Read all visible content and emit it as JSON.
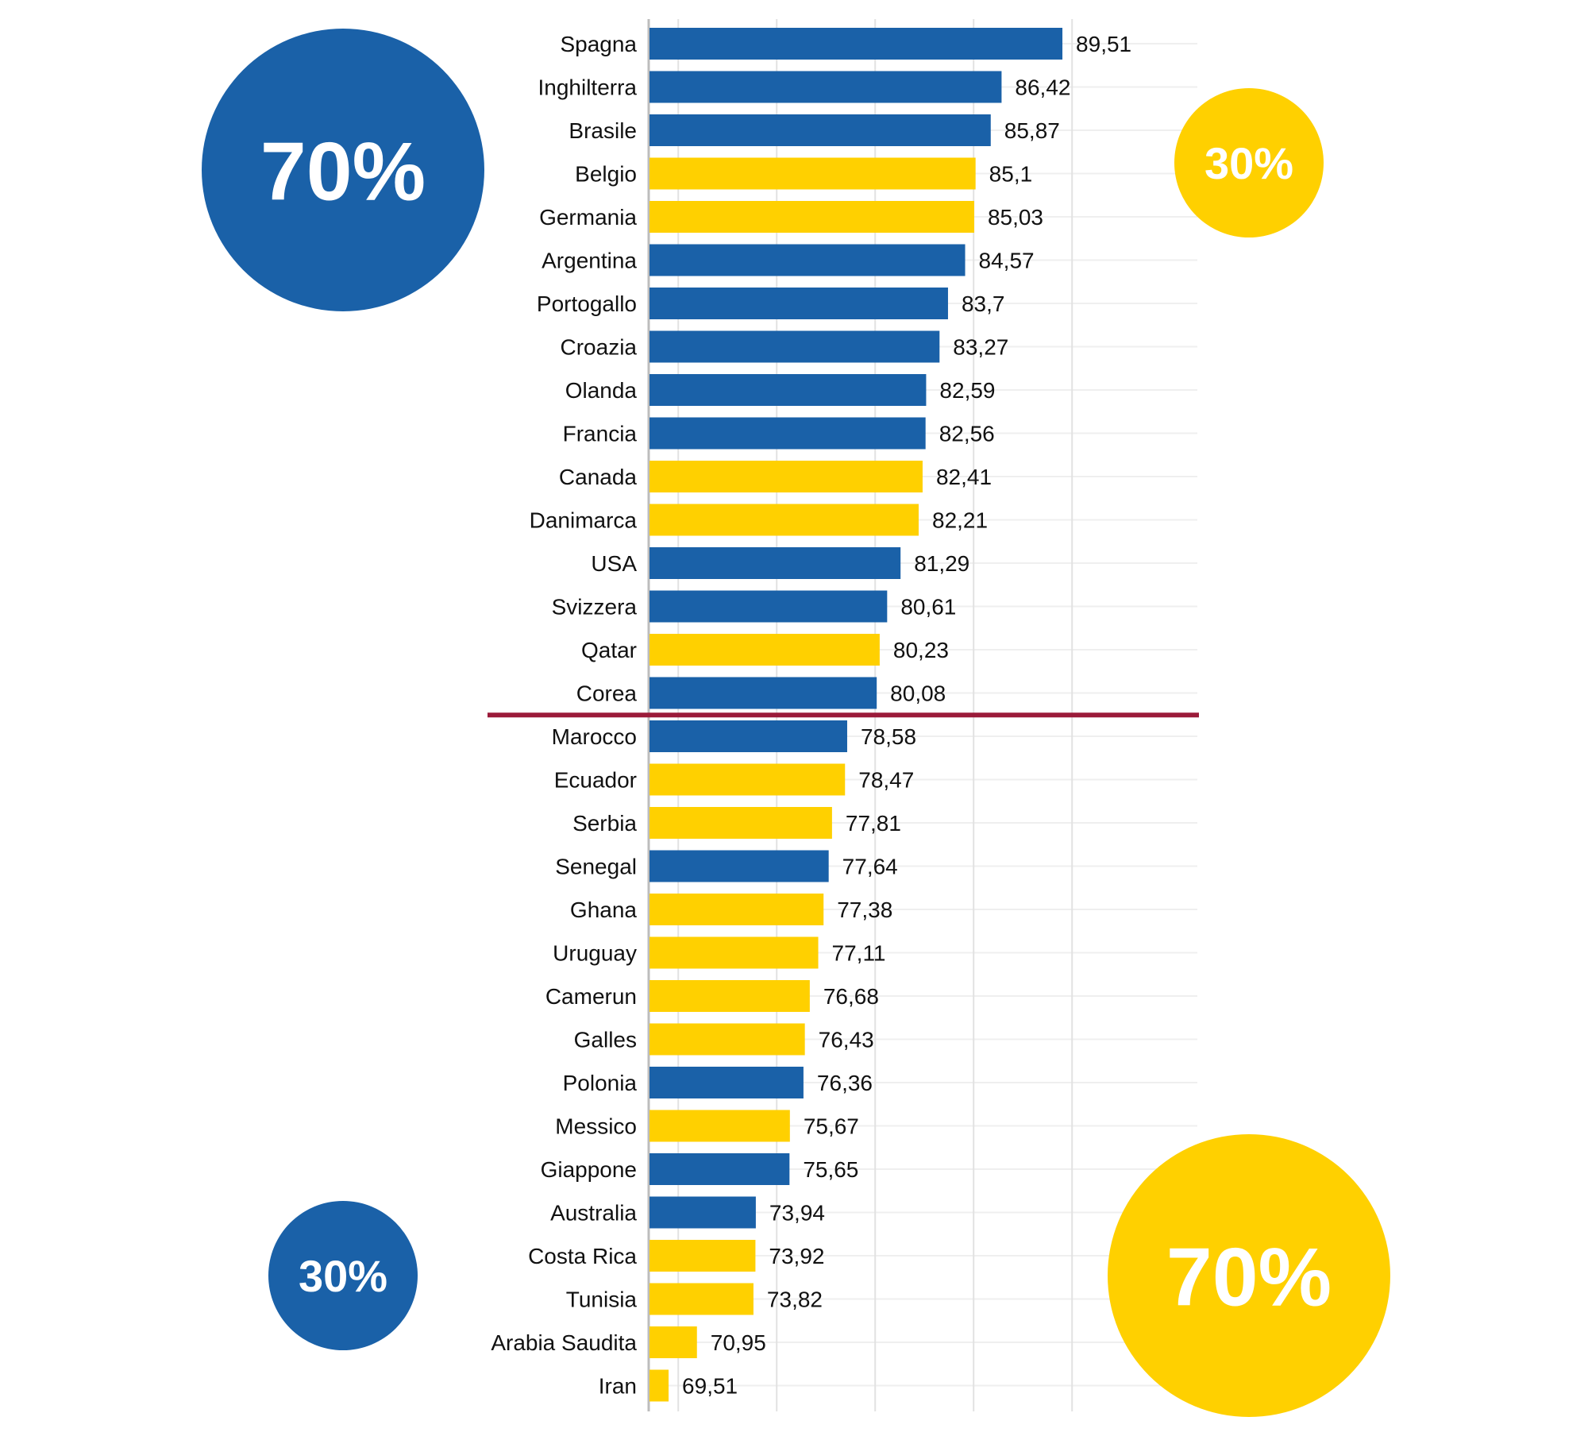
{
  "colors": {
    "group_a": "#1a61a8",
    "group_b": "#ffd000",
    "cutoff_line": "#9b1b3a",
    "grid": "#e2e2e2",
    "axis": "#bdbdbd"
  },
  "badges": [
    {
      "label": "70%",
      "color": "#1a61a8",
      "size": "large",
      "position": "top-left"
    },
    {
      "label": "30%",
      "color": "#ffd000",
      "size": "small",
      "position": "top-right"
    },
    {
      "label": "30%",
      "color": "#1a61a8",
      "size": "small",
      "position": "bottom-left"
    },
    {
      "label": "70%",
      "color": "#ffd000",
      "size": "large",
      "position": "bottom-right"
    }
  ],
  "chart_data": {
    "type": "bar",
    "orientation": "horizontal",
    "title": "",
    "xlabel": "",
    "ylabel": "",
    "xlim": [
      68.5,
      90
    ],
    "x_gridlines": [
      70,
      75,
      80,
      85,
      90
    ],
    "grid": true,
    "cutoff_after": "Corea",
    "categories": [
      "Spagna",
      "Inghilterra",
      "Brasile",
      "Belgio",
      "Germania",
      "Argentina",
      "Portogallo",
      "Croazia",
      "Olanda",
      "Francia",
      "Canada",
      "Danimarca",
      "USA",
      "Svizzera",
      "Qatar",
      "Corea",
      "Marocco",
      "Ecuador",
      "Serbia",
      "Senegal",
      "Ghana",
      "Uruguay",
      "Camerun",
      "Galles",
      "Polonia",
      "Messico",
      "Giappone",
      "Australia",
      "Costa Rica",
      "Tunisia",
      "Arabia Saudita",
      "Iran"
    ],
    "values": [
      89.51,
      86.42,
      85.87,
      85.1,
      85.03,
      84.57,
      83.7,
      83.27,
      82.59,
      82.56,
      82.41,
      82.21,
      81.29,
      80.61,
      80.23,
      80.08,
      78.58,
      78.47,
      77.81,
      77.64,
      77.38,
      77.11,
      76.68,
      76.43,
      76.36,
      75.67,
      75.65,
      73.94,
      73.92,
      73.82,
      70.95,
      69.51
    ],
    "labels": [
      "89,51",
      "86,42",
      "85,87",
      "85,1",
      "85,03",
      "84,57",
      "83,7",
      "83,27",
      "82,59",
      "82,56",
      "82,41",
      "82,21",
      "81,29",
      "80,61",
      "80,23",
      "80,08",
      "78,58",
      "78,47",
      "77,81",
      "77,64",
      "77,38",
      "77,11",
      "76,68",
      "76,43",
      "76,36",
      "75,67",
      "75,65",
      "73,94",
      "73,92",
      "73,82",
      "70,95",
      "69,51"
    ],
    "bar_colors": [
      "#1a61a8",
      "#1a61a8",
      "#1a61a8",
      "#ffd000",
      "#ffd000",
      "#1a61a8",
      "#1a61a8",
      "#1a61a8",
      "#1a61a8",
      "#1a61a8",
      "#ffd000",
      "#ffd000",
      "#1a61a8",
      "#1a61a8",
      "#ffd000",
      "#1a61a8",
      "#1a61a8",
      "#ffd000",
      "#ffd000",
      "#1a61a8",
      "#ffd000",
      "#ffd000",
      "#ffd000",
      "#ffd000",
      "#1a61a8",
      "#ffd000",
      "#1a61a8",
      "#1a61a8",
      "#ffd000",
      "#ffd000",
      "#ffd000",
      "#ffd000"
    ]
  }
}
